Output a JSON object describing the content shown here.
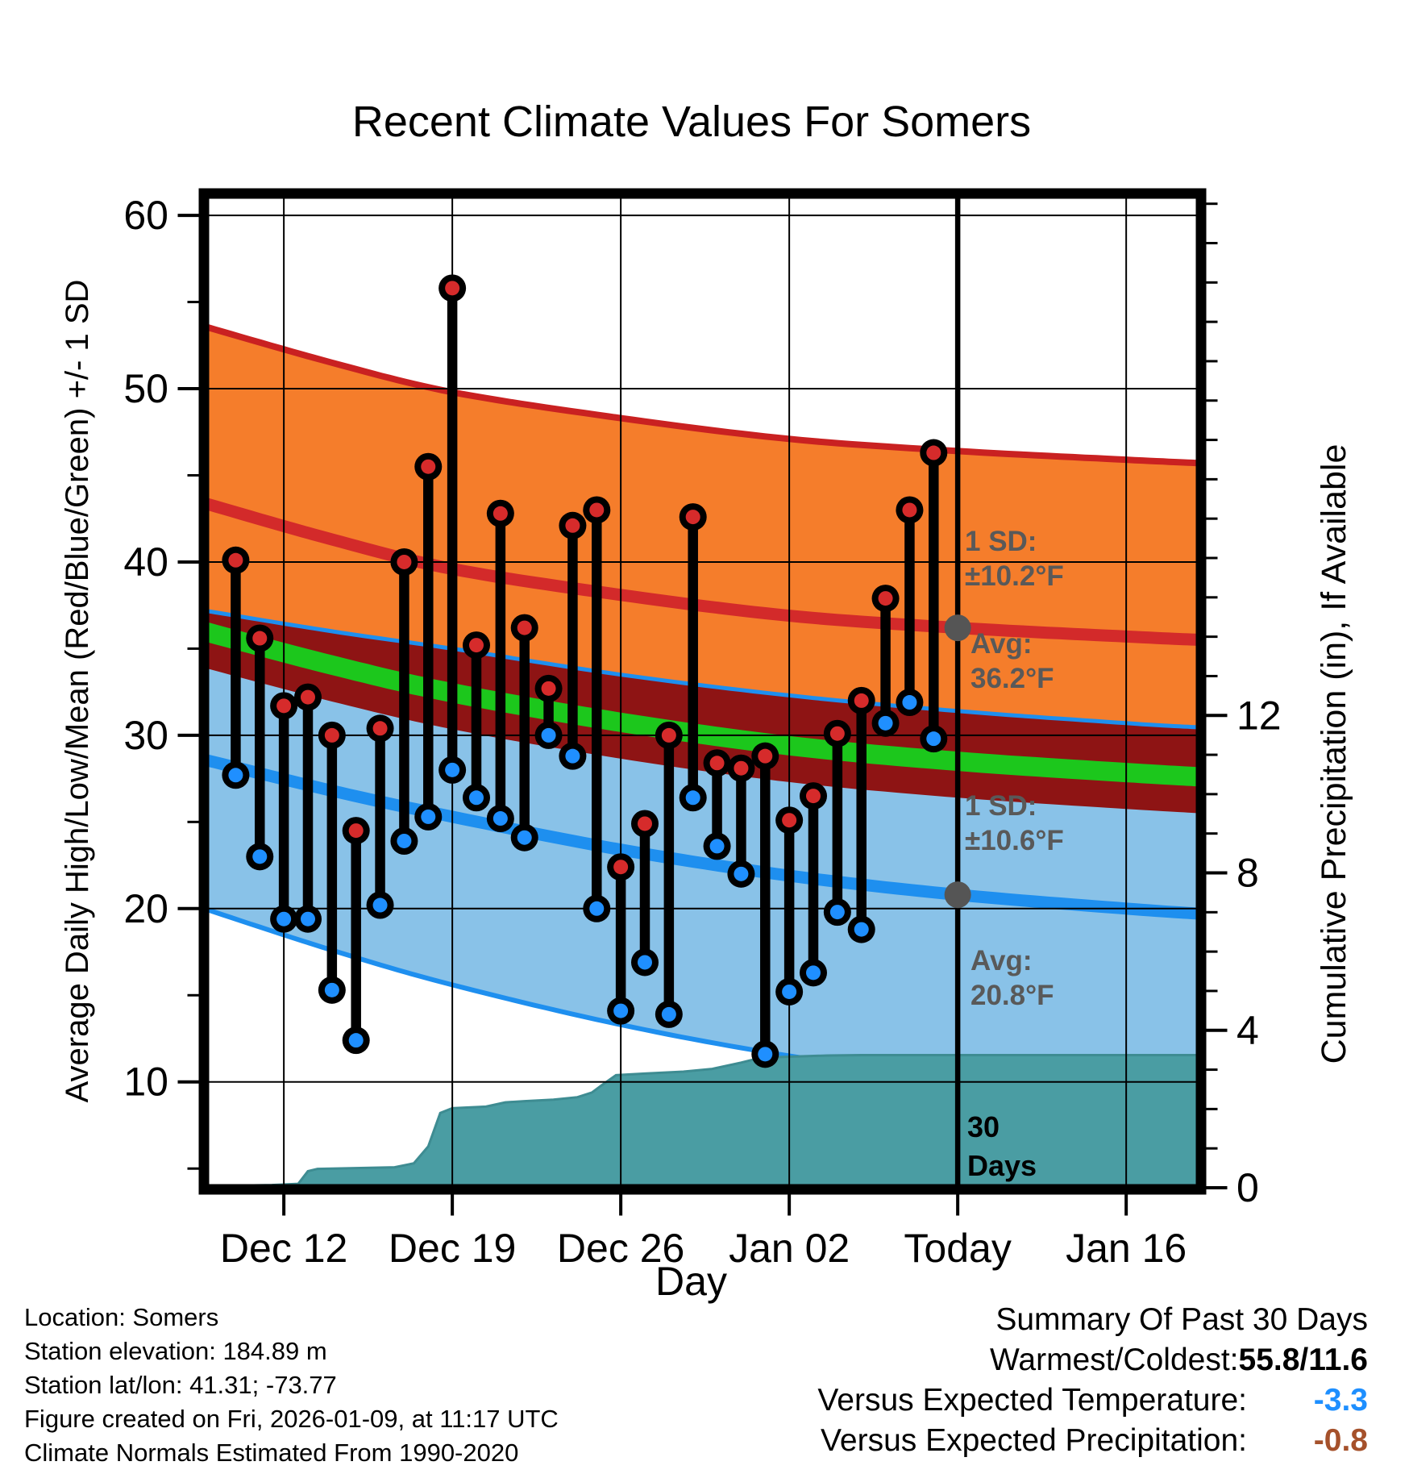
{
  "chart_data": {
    "type": "composite",
    "title": "Recent Climate Values For Somers",
    "xlabel": "Day",
    "left_axis": {
      "label": "Average Daily High/Low/Mean (Red/Blue/Green) +/- 1 SD",
      "ticks": [
        10,
        20,
        30,
        40,
        50,
        60
      ],
      "minor_ticks": [
        5,
        15,
        25,
        35,
        45,
        55
      ],
      "range": [
        3.8,
        61.26
      ],
      "grid": true
    },
    "right_axis": {
      "label": "Cumulative Precipitation (in), If Available",
      "ticks": [
        0,
        4,
        8,
        12
      ],
      "minor_step": 1,
      "range": [
        0,
        25.26
      ],
      "grid": false
    },
    "x_axis": {
      "tick_labels": [
        "Dec 12",
        "Dec 19",
        "Dec 26",
        "Jan 02",
        "Today",
        "Jan 16"
      ],
      "tick_days": [
        2,
        9,
        16,
        23,
        30,
        37
      ],
      "range_days": [
        -1.32,
        40.11
      ],
      "today_day": 30,
      "grid": true
    },
    "daily": {
      "dates": [
        "Dec 10",
        "Dec 11",
        "Dec 12",
        "Dec 13",
        "Dec 14",
        "Dec 15",
        "Dec 16",
        "Dec 17",
        "Dec 18",
        "Dec 19",
        "Dec 20",
        "Dec 21",
        "Dec 22",
        "Dec 23",
        "Dec 24",
        "Dec 25",
        "Dec 26",
        "Dec 27",
        "Dec 28",
        "Dec 29",
        "Dec 30",
        "Dec 31",
        "Jan 01",
        "Jan 02",
        "Jan 03",
        "Jan 04",
        "Jan 05",
        "Jan 06",
        "Jan 07",
        "Jan 08"
      ],
      "high": [
        40.1,
        35.6,
        31.7,
        32.2,
        30.0,
        24.5,
        30.4,
        40.0,
        45.5,
        55.8,
        35.2,
        42.8,
        36.2,
        32.7,
        42.1,
        43.0,
        22.4,
        24.9,
        30.0,
        42.6,
        28.4,
        28.1,
        28.8,
        25.1,
        26.5,
        30.1,
        32.0,
        37.9,
        43.0,
        46.3
      ],
      "low": [
        27.7,
        23.0,
        19.4,
        19.4,
        15.3,
        12.4,
        20.2,
        23.9,
        25.3,
        28.0,
        26.4,
        25.2,
        24.1,
        30.0,
        28.8,
        20.0,
        14.1,
        16.9,
        13.9,
        26.4,
        23.6,
        22.0,
        11.6,
        15.2,
        16.3,
        19.8,
        18.8,
        30.7,
        31.9,
        29.8
      ]
    },
    "climatology": {
      "anchor_days": [
        -1.32,
        4,
        9,
        16,
        23,
        30,
        37,
        40.11
      ],
      "avg_high": [
        43.4,
        41.3,
        39.6,
        38.1,
        36.9,
        36.2,
        35.7,
        35.5
      ],
      "avg_low": [
        28.6,
        26.8,
        25.3,
        23.4,
        21.9,
        20.8,
        20.0,
        19.7
      ],
      "sd_high": 10.2,
      "sd_low": 10.6,
      "sd_low_at_anchors": [
        8.6,
        9.2,
        9.7,
        10.1,
        10.4,
        10.6,
        10.7,
        10.75
      ],
      "mean_band_halfwidth": 2.1,
      "today_avg_high": 36.2,
      "today_avg_low": 20.8
    },
    "precip_cumulative_points": [
      [
        -1.32,
        0.04
      ],
      [
        1.5,
        0.07
      ],
      [
        2.6,
        0.1
      ],
      [
        3.0,
        0.42
      ],
      [
        3.4,
        0.48
      ],
      [
        6.6,
        0.52
      ],
      [
        7.4,
        0.62
      ],
      [
        8.0,
        1.05
      ],
      [
        8.5,
        1.9
      ],
      [
        9.0,
        2.02
      ],
      [
        10.4,
        2.06
      ],
      [
        11.2,
        2.17
      ],
      [
        12.0,
        2.2
      ],
      [
        13.2,
        2.24
      ],
      [
        14.2,
        2.3
      ],
      [
        14.8,
        2.42
      ],
      [
        15.2,
        2.6
      ],
      [
        15.8,
        2.86
      ],
      [
        17.0,
        2.9
      ],
      [
        18.6,
        2.95
      ],
      [
        19.8,
        3.02
      ],
      [
        21.0,
        3.18
      ],
      [
        21.8,
        3.3
      ],
      [
        23.0,
        3.33
      ],
      [
        24.6,
        3.36
      ],
      [
        26.0,
        3.37
      ],
      [
        40.11,
        3.37
      ]
    ],
    "colors": {
      "band_orange": "#F57D2B",
      "band_edge_red": "#C92121",
      "avg_high_line": "#D32A2A",
      "band_maroon": "#8E1414",
      "mean_line_green": "#1CC71C",
      "band_lightblue": "#89C2E8",
      "avg_low_line": "#1E8FEF",
      "precip_teal": "#4A9DA3",
      "precip_teal_edge": "#3E8C92",
      "dot_red": "#D62B2B",
      "dot_blue": "#1F8FFF",
      "stem_black": "#000000",
      "annotation_gray": "#595959",
      "today_line": "#000000",
      "avg_marker_gray": "#555555"
    }
  },
  "annotations": {
    "sd_high": {
      "line1": "1 SD:",
      "line2": "±10.2°F"
    },
    "avg_high": {
      "line1": "Avg:",
      "line2": "36.2°F"
    },
    "sd_low": {
      "line1": "1 SD:",
      "line2": "±10.6°F"
    },
    "avg_low": {
      "line1": "Avg:",
      "line2": "20.8°F"
    },
    "period": {
      "line1": "30",
      "line2": "Days"
    }
  },
  "footer_left": {
    "line1": "Location: Somers",
    "line2": "Station elevation: 184.89 m",
    "line3": "Station lat/lon: 41.31; -73.77",
    "line4": "Figure created on Fri, 2026-01-09, at 11:17 UTC",
    "line5": "Climate Normals Estimated From 1990-2020"
  },
  "summary": {
    "title": "Summary Of Past 30 Days",
    "warmest": {
      "label": "Warmest/Coldest:",
      "value": "55.8/11.6",
      "color": "#000000"
    },
    "temperature": {
      "label": "Versus Expected Temperature:",
      "value": "-3.3",
      "color": "#1E8FFF"
    },
    "precipitation": {
      "label": "Versus Expected Precipitation:",
      "value": "-0.8",
      "color": "#A5512B"
    }
  }
}
